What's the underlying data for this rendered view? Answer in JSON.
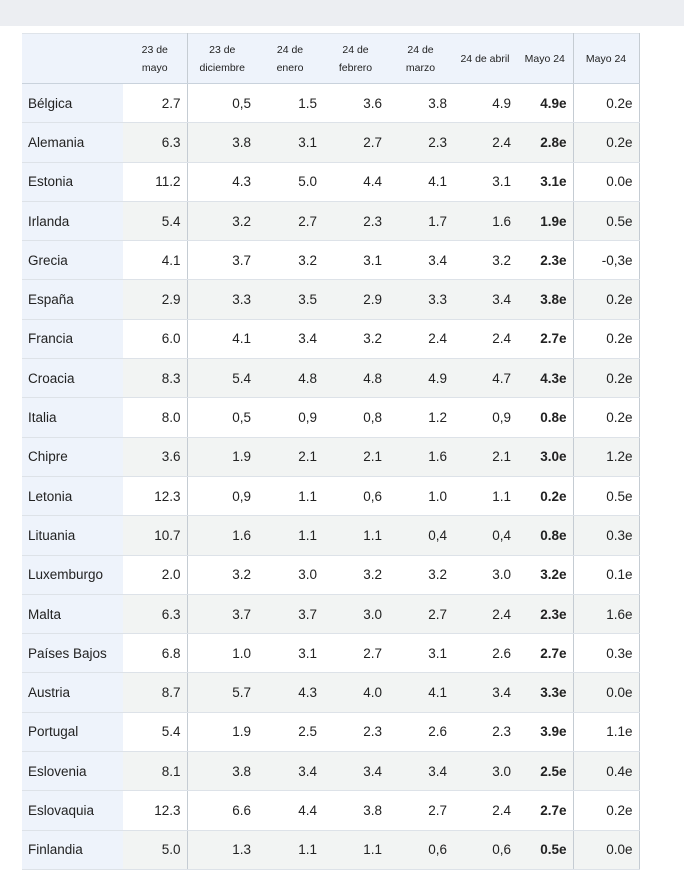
{
  "table": {
    "headers": [
      "",
      "23 de mayo",
      "23 de diciembre",
      "24 de enero",
      "24 de febrero",
      "24 de marzo",
      "24 de abril",
      "Mayo 24",
      "Mayo 24"
    ],
    "rows": [
      {
        "country": "Bélgica",
        "values": [
          "2.7",
          "0,5",
          "1.5",
          "3.6",
          "3.8",
          "4.9",
          "4.9e",
          "0.2e"
        ]
      },
      {
        "country": "Alemania",
        "values": [
          "6.3",
          "3.8",
          "3.1",
          "2.7",
          "2.3",
          "2.4",
          "2.8e",
          "0.2e"
        ]
      },
      {
        "country": "Estonia",
        "values": [
          "11.2",
          "4.3",
          "5.0",
          "4.4",
          "4.1",
          "3.1",
          "3.1e",
          "0.0e"
        ]
      },
      {
        "country": "Irlanda",
        "values": [
          "5.4",
          "3.2",
          "2.7",
          "2.3",
          "1.7",
          "1.6",
          "1.9e",
          "0.5e"
        ]
      },
      {
        "country": "Grecia",
        "values": [
          "4.1",
          "3.7",
          "3.2",
          "3.1",
          "3.4",
          "3.2",
          "2.3e",
          "-0,3e"
        ]
      },
      {
        "country": "España",
        "values": [
          "2.9",
          "3.3",
          "3.5",
          "2.9",
          "3.3",
          "3.4",
          "3.8e",
          "0.2e"
        ]
      },
      {
        "country": "Francia",
        "values": [
          "6.0",
          "4.1",
          "3.4",
          "3.2",
          "2.4",
          "2.4",
          "2.7e",
          "0.2e"
        ]
      },
      {
        "country": "Croacia",
        "values": [
          "8.3",
          "5.4",
          "4.8",
          "4.8",
          "4.9",
          "4.7",
          "4.3e",
          "0.2e"
        ]
      },
      {
        "country": "Italia",
        "values": [
          "8.0",
          "0,5",
          "0,9",
          "0,8",
          "1.2",
          "0,9",
          "0.8e",
          "0.2e"
        ]
      },
      {
        "country": "Chipre",
        "values": [
          "3.6",
          "1.9",
          "2.1",
          "2.1",
          "1.6",
          "2.1",
          "3.0e",
          "1.2e"
        ]
      },
      {
        "country": "Letonia",
        "values": [
          "12.3",
          "0,9",
          "1.1",
          "0,6",
          "1.0",
          "1.1",
          "0.2e",
          "0.5e"
        ]
      },
      {
        "country": "Lituania",
        "values": [
          "10.7",
          "1.6",
          "1.1",
          "1.1",
          "0,4",
          "0,4",
          "0.8e",
          "0.3e"
        ]
      },
      {
        "country": "Luxemburgo",
        "values": [
          "2.0",
          "3.2",
          "3.0",
          "3.2",
          "3.2",
          "3.0",
          "3.2e",
          "0.1e"
        ]
      },
      {
        "country": "Malta",
        "values": [
          "6.3",
          "3.7",
          "3.7",
          "3.0",
          "2.7",
          "2.4",
          "2.3e",
          "1.6e"
        ]
      },
      {
        "country": "Países Bajos",
        "values": [
          "6.8",
          "1.0",
          "3.1",
          "2.7",
          "3.1",
          "2.6",
          "2.7e",
          "0.3e"
        ]
      },
      {
        "country": "Austria",
        "values": [
          "8.7",
          "5.7",
          "4.3",
          "4.0",
          "4.1",
          "3.4",
          "3.3e",
          "0.0e"
        ]
      },
      {
        "country": "Portugal",
        "values": [
          "5.4",
          "1.9",
          "2.5",
          "2.3",
          "2.6",
          "2.3",
          "3.9e",
          "1.1e"
        ]
      },
      {
        "country": "Eslovenia",
        "values": [
          "8.1",
          "3.8",
          "3.4",
          "3.4",
          "3.4",
          "3.0",
          "2.5e",
          "0.4e"
        ]
      },
      {
        "country": "Eslovaquia",
        "values": [
          "12.3",
          "6.6",
          "4.4",
          "3.8",
          "2.7",
          "2.4",
          "2.7e",
          "0.2e"
        ]
      },
      {
        "country": "Finlandia",
        "values": [
          "5.0",
          "1.3",
          "1.1",
          "1.1",
          "0,6",
          "0,6",
          "0.5e",
          "0.0e"
        ]
      }
    ]
  }
}
